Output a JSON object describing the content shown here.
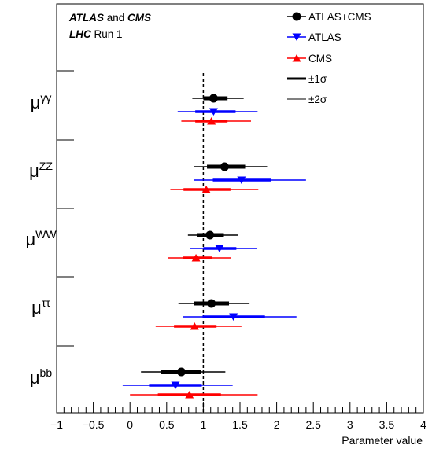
{
  "chart_data": {
    "type": "scatter",
    "title_lines": [
      {
        "bold": "ATLAS",
        "normal": " and ",
        "bold2": "CMS"
      },
      {
        "bold": "LHC",
        "normal": " Run 1",
        "bold2": ""
      }
    ],
    "xlabel": "Parameter value",
    "xlim": [
      -1,
      4
    ],
    "x_ticks": [
      -1,
      -0.5,
      0,
      0.5,
      1,
      1.5,
      2,
      2.5,
      3,
      3.5,
      4
    ],
    "x_tick_labels": [
      "−1",
      "−0.5",
      "0",
      "0.5",
      "1",
      "1.5",
      "2",
      "2.5",
      "3",
      "3.5",
      "4"
    ],
    "reference_line": 1,
    "colors": {
      "combined": "#000000",
      "atlas": "#0000ff",
      "cms": "#ff0000"
    },
    "legend": [
      {
        "label": "ATLAS+CMS",
        "marker": "circle",
        "color": "#000000"
      },
      {
        "label": "ATLAS",
        "marker": "triangle-down",
        "color": "#0000ff"
      },
      {
        "label": "CMS",
        "marker": "triangle-up",
        "color": "#ff0000"
      },
      {
        "label": "±1σ",
        "marker": "thick-line",
        "color": "#000000"
      },
      {
        "label": "±2σ",
        "marker": "thin-line",
        "color": "#000000"
      }
    ],
    "categories": [
      {
        "base": "μ",
        "sup": "γγ"
      },
      {
        "base": "μ",
        "sup": "ZZ"
      },
      {
        "base": "μ",
        "sup": "WW"
      },
      {
        "base": "μ",
        "sup": "ττ"
      },
      {
        "base": "μ",
        "sup": "bb"
      }
    ],
    "series": [
      {
        "name": "ATLAS+CMS",
        "points": [
          {
            "value": 1.14,
            "s1": [
              1.0,
              1.33
            ],
            "s2": [
              0.85,
              1.55
            ]
          },
          {
            "value": 1.29,
            "s1": [
              1.05,
              1.57
            ],
            "s2": [
              0.87,
              1.87
            ]
          },
          {
            "value": 1.09,
            "s1": [
              0.91,
              1.28
            ],
            "s2": [
              0.79,
              1.47
            ]
          },
          {
            "value": 1.11,
            "s1": [
              0.87,
              1.35
            ],
            "s2": [
              0.66,
              1.63
            ]
          },
          {
            "value": 0.7,
            "s1": [
              0.42,
              0.97
            ],
            "s2": [
              0.15,
              1.3
            ]
          }
        ]
      },
      {
        "name": "ATLAS",
        "points": [
          {
            "value": 1.14,
            "s1": [
              0.89,
              1.44
            ],
            "s2": [
              0.65,
              1.74
            ]
          },
          {
            "value": 1.52,
            "s1": [
              1.13,
              1.92
            ],
            "s2": [
              0.87,
              2.4
            ]
          },
          {
            "value": 1.22,
            "s1": [
              1.0,
              1.45
            ],
            "s2": [
              0.82,
              1.73
            ]
          },
          {
            "value": 1.41,
            "s1": [
              0.99,
              1.84
            ],
            "s2": [
              0.72,
              2.27
            ]
          },
          {
            "value": 0.62,
            "s1": [
              0.26,
              0.98
            ],
            "s2": [
              -0.1,
              1.4
            ]
          }
        ]
      },
      {
        "name": "CMS",
        "points": [
          {
            "value": 1.11,
            "s1": [
              0.89,
              1.33
            ],
            "s2": [
              0.7,
              1.65
            ]
          },
          {
            "value": 1.04,
            "s1": [
              0.73,
              1.37
            ],
            "s2": [
              0.55,
              1.75
            ]
          },
          {
            "value": 0.9,
            "s1": [
              0.72,
              1.12
            ],
            "s2": [
              0.52,
              1.38
            ]
          },
          {
            "value": 0.88,
            "s1": [
              0.6,
              1.18
            ],
            "s2": [
              0.35,
              1.52
            ]
          },
          {
            "value": 0.81,
            "s1": [
              0.38,
              1.24
            ],
            "s2": [
              0.0,
              1.74
            ]
          }
        ]
      }
    ]
  }
}
